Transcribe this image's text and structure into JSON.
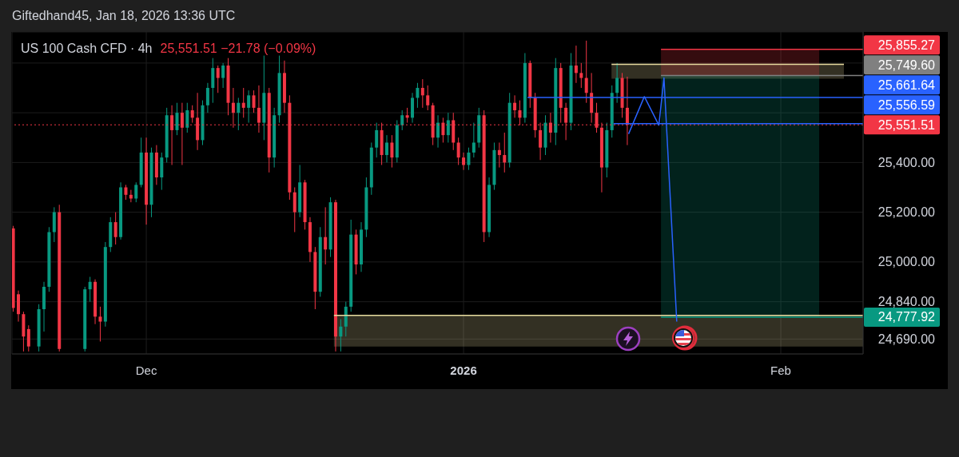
{
  "chart_data": {
    "type": "candlestick",
    "title": "US 100 Cash CFD · 4h",
    "subtitle": "25,551.51 −21.78 (−0.09%)",
    "annotations": [
      "Giftedhand45, Jan 18, 2026 13:36 UTC"
    ],
    "x": [
      "2025-11-18T00:00",
      "2025-11-18T12:00",
      "2025-11-19T00:00",
      "2025-11-19T12:00",
      "2025-11-20T12:00",
      "2025-11-21T00:00",
      "2025-11-21T12:00",
      "2025-11-22T00:00",
      "2025-11-22T12:00",
      "2025-11-25T00:00",
      "2025-11-25T12:00",
      "2025-11-26T00:00",
      "2025-11-26T12:00",
      "2025-11-27T00:00",
      "2025-11-27T12:00",
      "2025-11-28T00:00",
      "2025-11-28T12:00",
      "2025-11-29T00:00",
      "2025-11-29T12:00",
      "2025-11-30T00:00",
      "2025-11-30T12:00",
      "2025-12-01T00:00",
      "2025-12-01T12:00",
      "2025-12-02T00:00",
      "2025-12-02T12:00",
      "2025-12-03T00:00",
      "2025-12-03T12:00",
      "2025-12-04T00:00",
      "2025-12-04T12:00",
      "2025-12-05T00:00",
      "2025-12-05T12:00",
      "2025-12-06T00:00",
      "2025-12-06T12:00",
      "2025-12-07T00:00",
      "2025-12-07T12:00",
      "2025-12-08T00:00",
      "2025-12-08T12:00",
      "2025-12-09T00:00",
      "2025-12-09T12:00",
      "2025-12-10T00:00",
      "2025-12-10T12:00",
      "2025-12-11T00:00",
      "2025-12-11T12:00",
      "2025-12-12T00:00",
      "2025-12-12T12:00",
      "2025-12-13T00:00",
      "2025-12-13T12:00",
      "2025-12-14T00:00",
      "2025-12-14T12:00",
      "2025-12-15T00:00",
      "2025-12-15T12:00",
      "2025-12-16T00:00",
      "2025-12-16T12:00",
      "2025-12-17T00:00",
      "2025-12-17T12:00",
      "2025-12-18T00:00",
      "2025-12-18T12:00",
      "2025-12-19T00:00",
      "2025-12-19T12:00",
      "2025-12-20T00:00",
      "2025-12-20T12:00",
      "2025-12-21T00:00",
      "2025-12-21T12:00",
      "2025-12-22T00:00",
      "2025-12-22T12:00",
      "2025-12-23T00:00",
      "2025-12-23T12:00",
      "2025-12-24T00:00",
      "2025-12-24T12:00",
      "2025-12-25T00:00",
      "2025-12-25T12:00",
      "2025-12-26T00:00",
      "2025-12-26T12:00",
      "2025-12-27T00:00",
      "2025-12-27T12:00",
      "2025-12-28T00:00",
      "2025-12-28T12:00",
      "2025-12-29T00:00",
      "2025-12-29T12:00",
      "2025-12-30T00:00",
      "2025-12-30T12:00",
      "2025-12-31T00:00",
      "2025-12-31T12:00",
      "2026-01-01T00:00",
      "2026-01-01T12:00",
      "2026-01-02T00:00",
      "2026-01-02T12:00",
      "2026-01-03T00:00",
      "2026-01-03T12:00",
      "2026-01-04T00:00",
      "2026-01-04T12:00",
      "2026-01-05T00:00",
      "2026-01-05T12:00",
      "2026-01-06T00:00",
      "2026-01-06T12:00",
      "2026-01-07T00:00",
      "2026-01-07T12:00",
      "2026-01-08T00:00",
      "2026-01-08T12:00",
      "2026-01-09T00:00",
      "2026-01-09T12:00",
      "2026-01-10T00:00",
      "2026-01-10T12:00",
      "2026-01-11T00:00",
      "2026-01-11T12:00",
      "2026-01-12T00:00",
      "2026-01-12T12:00",
      "2026-01-13T00:00",
      "2026-01-13T12:00",
      "2026-01-14T00:00",
      "2026-01-14T12:00",
      "2026-01-15T00:00",
      "2026-01-15T12:00",
      "2026-01-16T00:00",
      "2026-01-16T12:00",
      "2026-01-17T00:00"
    ],
    "ohlc": [
      [
        25135,
        25145,
        24800,
        24815
      ],
      [
        24870,
        24885,
        24760,
        24790
      ],
      [
        24790,
        24800,
        24640,
        24700
      ],
      [
        24730,
        24745,
        24640,
        24660
      ],
      [
        24660,
        24830,
        24640,
        24810
      ],
      [
        24810,
        24920,
        24720,
        24900
      ],
      [
        24900,
        25140,
        24880,
        25120
      ],
      [
        25120,
        25220,
        25080,
        25200
      ],
      [
        25200,
        25230,
        24640,
        24650
      ],
      [
        24650,
        24900,
        24640,
        24890
      ],
      [
        24890,
        24940,
        24840,
        24920
      ],
      [
        24920,
        24930,
        24750,
        24780
      ],
      [
        24780,
        24820,
        24680,
        24760
      ],
      [
        24760,
        25080,
        24740,
        25060
      ],
      [
        25060,
        25180,
        25040,
        25160
      ],
      [
        25160,
        25200,
        25070,
        25100
      ],
      [
        25100,
        25320,
        25090,
        25300
      ],
      [
        25300,
        25310,
        25250,
        25270
      ],
      [
        25270,
        25290,
        25240,
        25255
      ],
      [
        25255,
        25320,
        25240,
        25310
      ],
      [
        25310,
        25500,
        25300,
        25440
      ],
      [
        25440,
        25500,
        25150,
        25230
      ],
      [
        25230,
        25460,
        25180,
        25440
      ],
      [
        25440,
        25470,
        25310,
        25340
      ],
      [
        25340,
        25440,
        25290,
        25420
      ],
      [
        25420,
        25620,
        25400,
        25590
      ],
      [
        25590,
        25630,
        25390,
        25530
      ],
      [
        25530,
        25640,
        25510,
        25600
      ],
      [
        25600,
        25640,
        25390,
        25540
      ],
      [
        25540,
        25640,
        25520,
        25610
      ],
      [
        25610,
        25630,
        25560,
        25580
      ],
      [
        25580,
        25680,
        25450,
        25490
      ],
      [
        25490,
        25650,
        25470,
        25630
      ],
      [
        25630,
        25720,
        25600,
        25700
      ],
      [
        25700,
        25820,
        25640,
        25780
      ],
      [
        25780,
        25790,
        25680,
        25740
      ],
      [
        25740,
        25800,
        25700,
        25790
      ],
      [
        25790,
        25820,
        25590,
        25640
      ],
      [
        25640,
        25700,
        25540,
        25600
      ],
      [
        25600,
        25660,
        25530,
        25640
      ],
      [
        25640,
        25700,
        25580,
        25620
      ],
      [
        25620,
        25690,
        25560,
        25670
      ],
      [
        25670,
        25690,
        25600,
        25620
      ],
      [
        25620,
        25710,
        25520,
        25560
      ],
      [
        25560,
        25830,
        25490,
        25680
      ],
      [
        25680,
        25700,
        25360,
        25420
      ],
      [
        25420,
        25620,
        25380,
        25590
      ],
      [
        25590,
        25830,
        25560,
        25760
      ],
      [
        25760,
        25810,
        25600,
        25640
      ],
      [
        25640,
        25670,
        25250,
        25280
      ],
      [
        25280,
        25300,
        25120,
        25200
      ],
      [
        25200,
        25390,
        25180,
        25320
      ],
      [
        25320,
        25330,
        25130,
        25160
      ],
      [
        25160,
        25180,
        25000,
        25040
      ],
      [
        25040,
        25060,
        24810,
        24880
      ],
      [
        24880,
        25140,
        24860,
        25100
      ],
      [
        25100,
        25220,
        24990,
        25050
      ],
      [
        25050,
        25260,
        25020,
        25240
      ],
      [
        25240,
        25250,
        24640,
        24700
      ],
      [
        24700,
        24770,
        24640,
        24740
      ],
      [
        24740,
        24840,
        24700,
        24820
      ],
      [
        24820,
        25170,
        24800,
        25110
      ],
      [
        25110,
        25130,
        24950,
        24990
      ],
      [
        24990,
        25160,
        24960,
        25130
      ],
      [
        25130,
        25340,
        25100,
        25300
      ],
      [
        25300,
        25480,
        25270,
        25460
      ],
      [
        25460,
        25560,
        25420,
        25530
      ],
      [
        25530,
        25560,
        25390,
        25430
      ],
      [
        25430,
        25510,
        25400,
        25480
      ],
      [
        25480,
        25510,
        25380,
        25420
      ],
      [
        25420,
        25570,
        25400,
        25550
      ],
      [
        25550,
        25610,
        25530,
        25590
      ],
      [
        25590,
        25620,
        25560,
        25580
      ],
      [
        25580,
        25680,
        25560,
        25660
      ],
      [
        25660,
        25720,
        25620,
        25700
      ],
      [
        25700,
        25735,
        25620,
        25670
      ],
      [
        25670,
        25710,
        25610,
        25630
      ],
      [
        25630,
        25640,
        25470,
        25500
      ],
      [
        25500,
        25590,
        25460,
        25560
      ],
      [
        25560,
        25580,
        25480,
        25510
      ],
      [
        25510,
        25600,
        25480,
        25570
      ],
      [
        25570,
        25600,
        25450,
        25480
      ],
      [
        25480,
        25500,
        25390,
        25420
      ],
      [
        25420,
        25440,
        25370,
        25390
      ],
      [
        25390,
        25460,
        25370,
        25440
      ],
      [
        25440,
        25560,
        25420,
        25480
      ],
      [
        25480,
        25620,
        25460,
        25590
      ],
      [
        25590,
        25610,
        25080,
        25120
      ],
      [
        25120,
        25340,
        25100,
        25310
      ],
      [
        25310,
        25480,
        25290,
        25450
      ],
      [
        25450,
        25480,
        25380,
        25430
      ],
      [
        25430,
        25520,
        25360,
        25400
      ],
      [
        25400,
        25680,
        25380,
        25640
      ],
      [
        25640,
        25670,
        25580,
        25610
      ],
      [
        25610,
        25650,
        25550,
        25580
      ],
      [
        25580,
        25840,
        25560,
        25800
      ],
      [
        25800,
        25810,
        25620,
        25660
      ],
      [
        25660,
        25680,
        25500,
        25530
      ],
      [
        25530,
        25560,
        25410,
        25460
      ],
      [
        25460,
        25590,
        25430,
        25560
      ],
      [
        25560,
        25600,
        25480,
        25520
      ],
      [
        25520,
        25820,
        25470,
        25780
      ],
      [
        25780,
        25800,
        25560,
        25620
      ],
      [
        25620,
        25640,
        25490,
        25560
      ],
      [
        25560,
        25840,
        25530,
        25790
      ],
      [
        25790,
        25870,
        25720,
        25760
      ],
      [
        25760,
        25800,
        25700,
        25740
      ],
      [
        25740,
        25890,
        25640,
        25680
      ],
      [
        25680,
        25760,
        25560,
        25600
      ],
      [
        25600,
        25640,
        25520,
        25540
      ],
      [
        25540,
        25560,
        25280,
        25380
      ],
      [
        25380,
        25560,
        25340,
        25530
      ],
      [
        25530,
        25710,
        25500,
        25680
      ],
      [
        25680,
        25800,
        25640,
        25740
      ],
      [
        25740,
        25760,
        25580,
        25620
      ],
      [
        25620,
        25745,
        25470,
        25551.51
      ]
    ],
    "colors": [
      "#f23645",
      "#f23645",
      "#f23645",
      "#f23645",
      "#089981",
      "#089981",
      "#089981",
      "#089981",
      "#f23645",
      "#089981",
      "#089981",
      "#f23645",
      "#f23645",
      "#089981",
      "#089981",
      "#f23645",
      "#089981",
      "#f23645",
      "#f23645",
      "#089981",
      "#089981",
      "#f23645",
      "#089981",
      "#f23645",
      "#089981",
      "#089981",
      "#f23645",
      "#089981",
      "#f23645",
      "#089981",
      "#f23645",
      "#f23645",
      "#089981",
      "#089981",
      "#089981",
      "#f23645",
      "#089981",
      "#f23645",
      "#f23645",
      "#089981",
      "#f23645",
      "#089981",
      "#f23645",
      "#f23645",
      "#089981",
      "#f23645",
      "#089981",
      "#089981",
      "#f23645",
      "#f23645",
      "#f23645",
      "#089981",
      "#f23645",
      "#f23645",
      "#f23645",
      "#089981",
      "#f23645",
      "#089981",
      "#f23645",
      "#089981",
      "#089981",
      "#089981",
      "#f23645",
      "#089981",
      "#089981",
      "#089981",
      "#089981",
      "#f23645",
      "#089981",
      "#f23645",
      "#089981",
      "#089981",
      "#f23645",
      "#089981",
      "#089981",
      "#f23645",
      "#f23645",
      "#f23645",
      "#089981",
      "#f23645",
      "#089981",
      "#f23645",
      "#f23645",
      "#f23645",
      "#089981",
      "#089981",
      "#089981",
      "#f23645",
      "#089981",
      "#089981",
      "#f23645",
      "#f23645",
      "#089981",
      "#f23645",
      "#f23645",
      "#089981",
      "#f23645",
      "#f23645",
      "#f23645",
      "#089981",
      "#f23645",
      "#089981",
      "#f23645",
      "#f23645",
      "#089981",
      "#f23645",
      "#f23645",
      "#f23645",
      "#f23645",
      "#f23645",
      "#f23645",
      "#089981",
      "#089981",
      "#089981",
      "#f23645",
      "#f23645"
    ],
    "series": [
      {
        "type": "line",
        "color": "#e8dca0",
        "x": [
          "2025-12-19T08:00",
          "2026-02-09T01:00"
        ],
        "values": [
          24785,
          24785
        ],
        "lower": [
          24660,
          24660
        ],
        "upper": [
          24785,
          24785
        ]
      },
      {
        "type": "line",
        "color": "#e8dca0",
        "x": [
          "2026-01-15T11:00",
          "2026-02-07T04:00"
        ],
        "values": [
          25795,
          25795
        ],
        "lower": [
          25737,
          25737
        ],
        "upper": [
          25795,
          25795
        ]
      },
      {
        "type": "line",
        "color": "#f23645",
        "x": [
          "2026-01-20T07:00",
          "2026-02-04T18:00",
          "2026-02-09T01:00"
        ],
        "values": [
          25855.27,
          25855.27,
          25855.27
        ],
        "lower": [
          25749.6,
          25749.6,
          null
        ],
        "upper": [
          25855.27,
          25855.27,
          null
        ],
        "value_labels": [
          null,
          null,
          "25,855.27"
        ]
      },
      {
        "type": "line",
        "color": "#808080",
        "x": [
          "2026-01-20T07:00",
          "2026-02-09T01:00"
        ],
        "values": [
          25749.6,
          25749.6
        ],
        "value_labels": [
          null,
          "25,749.60"
        ]
      },
      {
        "type": "line",
        "color": "#089981",
        "x": [
          "2026-01-20T07:00",
          "2026-02-04T18:00",
          "2026-02-09T01:00"
        ],
        "values": [
          24777.92,
          24777.92,
          24777.92
        ],
        "lower": [
          24777.92,
          24777.92,
          null
        ],
        "upper": [
          25749.6,
          25749.6,
          null
        ],
        "value_labels": [
          null,
          null,
          "24,777.92"
        ]
      },
      {
        "type": "line",
        "color": "#2962ff",
        "x": [
          "2026-01-07T06:00",
          "2026-02-09T01:00"
        ],
        "values": [
          25661.64,
          25661.64
        ],
        "value_labels": [
          null,
          "25,661.64"
        ]
      },
      {
        "type": "line",
        "color": "#2962ff",
        "x": [
          "2026-01-15T16:00",
          "2026-02-09T01:00"
        ],
        "values": [
          25556.59,
          25556.59
        ],
        "value_labels": [
          null,
          "25,556.59"
        ]
      },
      {
        "type": "line",
        "color": "#2962ff",
        "x": [
          "2026-01-17T03:00",
          "2026-01-18T16:00",
          "2026-01-20T02:00",
          "2026-01-20T14:00",
          "2026-01-21T20:00"
        ],
        "values": [
          25515,
          25665,
          25550,
          25740,
          24760
        ]
      }
    ],
    "ref_lines": [
      {
        "axis": "y",
        "value": 25551.51,
        "label": "25,551.51",
        "color": "#f23645",
        "line_style": "dotted"
      }
    ],
    "xlim": [
      "2025-11-17T21:00",
      "2026-02-09T01:00"
    ],
    "xticks": [
      {
        "value": "2025-12-01",
        "label": "Dec"
      },
      {
        "value": "2026-01-01",
        "label": "2026"
      },
      {
        "value": "2026-02-01",
        "label": "Feb"
      }
    ],
    "ylim": [
      24630,
      25925
    ],
    "yticks": [
      {
        "value": 25800,
        "label": null
      },
      {
        "value": 25600,
        "label": null
      },
      {
        "value": 25400,
        "label": "25,400.00"
      },
      {
        "value": 25200,
        "label": "25,200.00"
      },
      {
        "value": 25000,
        "label": "25,000.00"
      },
      {
        "value": 24840,
        "label": "24,840.00"
      },
      {
        "value": 24690,
        "label": "24,690.00"
      }
    ],
    "grid": true
  }
}
